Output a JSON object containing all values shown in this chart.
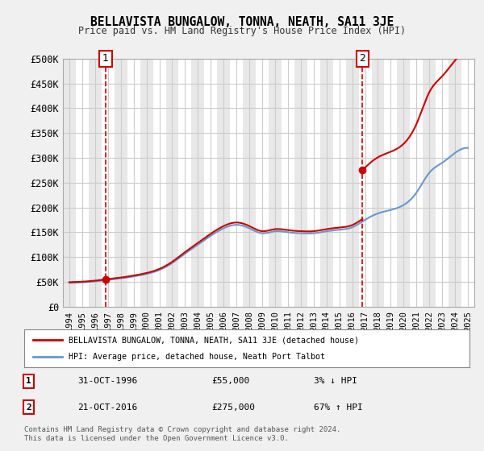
{
  "title": "BELLAVISTA BUNGALOW, TONNA, NEATH, SA11 3JE",
  "subtitle": "Price paid vs. HM Land Registry's House Price Index (HPI)",
  "xlabel": "",
  "ylabel": "",
  "ylim": [
    0,
    500000
  ],
  "yticks": [
    0,
    50000,
    100000,
    150000,
    200000,
    250000,
    300000,
    350000,
    400000,
    450000,
    500000
  ],
  "ytick_labels": [
    "£0",
    "£50K",
    "£100K",
    "£150K",
    "£200K",
    "£250K",
    "£300K",
    "£350K",
    "£400K",
    "£450K",
    "£500K"
  ],
  "xlim_start": 1993.5,
  "xlim_end": 2025.5,
  "xticks": [
    1994,
    1995,
    1996,
    1997,
    1998,
    1999,
    2000,
    2001,
    2002,
    2003,
    2004,
    2005,
    2006,
    2007,
    2008,
    2009,
    2010,
    2011,
    2012,
    2013,
    2014,
    2015,
    2016,
    2017,
    2018,
    2019,
    2020,
    2021,
    2022,
    2023,
    2024,
    2025
  ],
  "background_color": "#f0f0f0",
  "plot_bg_color": "#ffffff",
  "grid_color": "#cccccc",
  "hatch_color": "#e8e8e8",
  "red_line_color": "#cc0000",
  "blue_line_color": "#6699cc",
  "vline_color": "#cc0000",
  "marker1_year": 1996.83,
  "marker2_year": 2016.8,
  "transaction1": {
    "date": "31-OCT-1996",
    "price": 55000,
    "hpi_rel": "3% ↓ HPI"
  },
  "transaction2": {
    "date": "21-OCT-2016",
    "price": 275000,
    "hpi_rel": "67% ↑ HPI"
  },
  "legend_label_red": "BELLAVISTA BUNGALOW, TONNA, NEATH, SA11 3JE (detached house)",
  "legend_label_blue": "HPI: Average price, detached house, Neath Port Talbot",
  "footer": "Contains HM Land Registry data © Crown copyright and database right 2024.\nThis data is licensed under the Open Government Licence v3.0.",
  "hpi_years": [
    1994,
    1995,
    1996,
    1997,
    1998,
    1999,
    2000,
    2001,
    2002,
    2003,
    2004,
    2005,
    2006,
    2007,
    2008,
    2009,
    2010,
    2011,
    2012,
    2013,
    2014,
    2015,
    2016,
    2017,
    2018,
    2019,
    2020,
    2021,
    2022,
    2023,
    2024,
    2025
  ],
  "hpi_values": [
    48000,
    49000,
    51000,
    54000,
    57000,
    61000,
    66000,
    74000,
    88000,
    107000,
    125000,
    143000,
    158000,
    165000,
    158000,
    148000,
    152000,
    150000,
    148000,
    148000,
    152000,
    155000,
    160000,
    175000,
    188000,
    195000,
    205000,
    230000,
    270000,
    290000,
    310000,
    320000
  ],
  "price_paid_years": [
    1996.83,
    2016.8
  ],
  "price_paid_values": [
    55000,
    275000
  ]
}
